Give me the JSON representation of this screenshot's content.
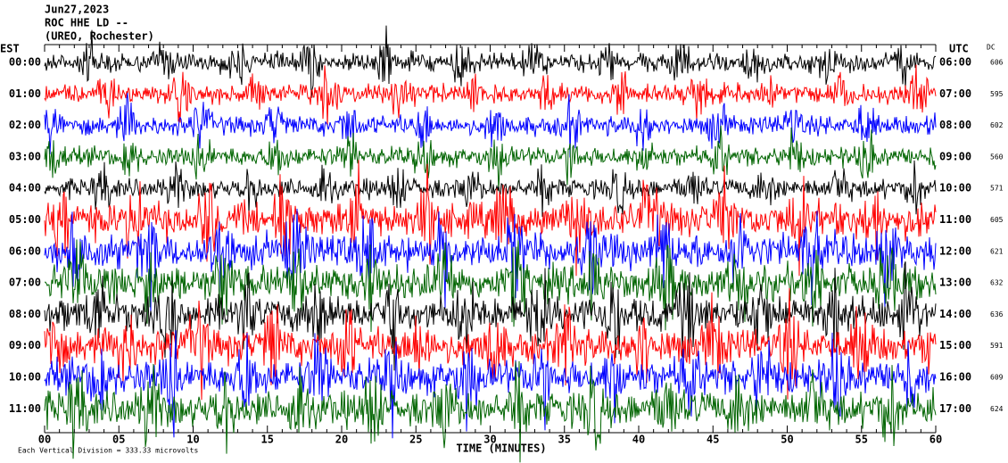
{
  "header": {
    "date": "Jun27,2023",
    "station": "ROC HHE LD --",
    "location": "(UREO, Rochester)"
  },
  "left_axis_title": "EST",
  "right_axis_title": "UTC",
  "dc_title": "DC",
  "rows": [
    {
      "est": "00:00",
      "utc": "06:00",
      "dc": "606"
    },
    {
      "est": "01:00",
      "utc": "07:00",
      "dc": "595"
    },
    {
      "est": "02:00",
      "utc": "08:00",
      "dc": "602"
    },
    {
      "est": "03:00",
      "utc": "09:00",
      "dc": "560"
    },
    {
      "est": "04:00",
      "utc": "10:00",
      "dc": "571"
    },
    {
      "est": "05:00",
      "utc": "11:00",
      "dc": "605"
    },
    {
      "est": "06:00",
      "utc": "12:00",
      "dc": "621"
    },
    {
      "est": "07:00",
      "utc": "13:00",
      "dc": "632"
    },
    {
      "est": "08:00",
      "utc": "14:00",
      "dc": "636"
    },
    {
      "est": "09:00",
      "utc": "15:00",
      "dc": "591"
    },
    {
      "est": "10:00",
      "utc": "16:00",
      "dc": "609"
    },
    {
      "est": "11:00",
      "utc": "17:00",
      "dc": "624"
    }
  ],
  "trace_colors": [
    "#000000",
    "#ff0000",
    "#0000ff",
    "#006400"
  ],
  "x_axis": {
    "title": "TIME (MINUTES)",
    "ticks": [
      "00",
      "05",
      "10",
      "15",
      "20",
      "25",
      "30",
      "35",
      "40",
      "45",
      "50",
      "55",
      "60"
    ]
  },
  "footer": "Each Vertical Division =  333.33 microvolts"
}
